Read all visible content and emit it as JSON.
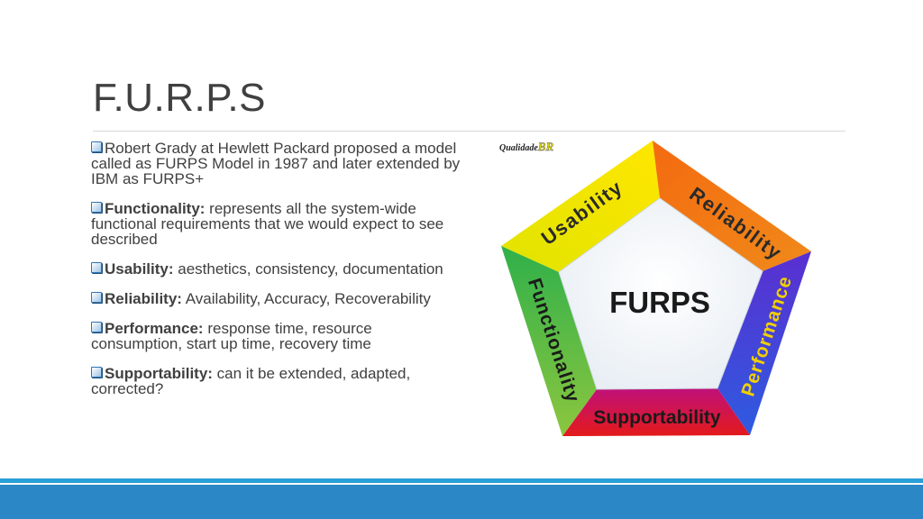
{
  "slide": {
    "title": "F.U.R.P.S"
  },
  "bullets": [
    {
      "term": "",
      "text": "Robert Grady at Hewlett Packard proposed a model called as FURPS Model in 1987 and later extended by IBM as FURPS+"
    },
    {
      "term": "Functionality:",
      "text": " represents all the system-wide functional requirements that we would expect to see described"
    },
    {
      "term": "Usability:",
      "text": " aesthetics, consistency, documentation"
    },
    {
      "term": "Reliability:",
      "text": " Availability, Accuracy, Recoverability"
    },
    {
      "term": "Performance:",
      "text": " response time, resource consumption, start up time, recovery time"
    },
    {
      "term": "Supportability:",
      "text": " can it be extended, adapted, corrected?"
    }
  ],
  "diagram": {
    "watermark_logo": "QualidadeBR",
    "center_label": "FURPS",
    "segments": {
      "usability": {
        "label": "Usability",
        "color": "#f2e600"
      },
      "reliability": {
        "label": "Reliability",
        "color": "#f07a10"
      },
      "performance": {
        "label": "Performance",
        "color": "#3a3ad8"
      },
      "supportability": {
        "label": "Supportability",
        "color": "#d81f26"
      },
      "functionality": {
        "label": "Functionality",
        "color": "#3fb43a"
      }
    }
  },
  "colors": {
    "title_text": "#404040",
    "footer_bar": "#2b87c5",
    "bullet_accent": "#2e74b5"
  }
}
